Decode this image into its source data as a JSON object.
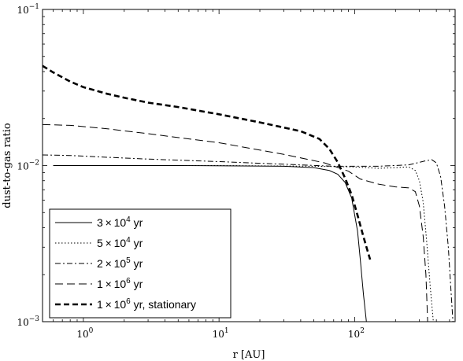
{
  "chart_data": {
    "type": "line",
    "xlabel": "r [AU]",
    "ylabel": "dust-to-gas ratio",
    "xscale": "log",
    "yscale": "log",
    "xlim": [
      0.5,
      550
    ],
    "ylim": [
      0.001,
      0.1
    ],
    "grid": false,
    "legend_position": "bottom-left",
    "x_ticks": [
      {
        "value": 1,
        "base": "10",
        "exp": "0"
      },
      {
        "value": 10,
        "base": "10",
        "exp": "1"
      },
      {
        "value": 100,
        "base": "10",
        "exp": "2"
      }
    ],
    "y_ticks": [
      {
        "value": 0.001,
        "base": "10",
        "exp": "−3"
      },
      {
        "value": 0.01,
        "base": "10",
        "exp": "−2"
      },
      {
        "value": 0.1,
        "base": "10",
        "exp": "−1"
      }
    ],
    "series": [
      {
        "id": "s1",
        "dash": "",
        "width": 1.0,
        "label": {
          "mantissa": "3",
          "times": "×",
          "base": "10",
          "exp": "4",
          "suffix": " yr"
        },
        "points": [
          [
            0.6,
            0.01
          ],
          [
            5,
            0.01
          ],
          [
            30,
            0.0099
          ],
          [
            50,
            0.0097
          ],
          [
            65,
            0.0093
          ],
          [
            75,
            0.0088
          ],
          [
            85,
            0.0078
          ],
          [
            95,
            0.0062
          ],
          [
            105,
            0.0038
          ],
          [
            110,
            0.0025
          ],
          [
            116,
            0.0015
          ],
          [
            122,
            0.001
          ]
        ]
      },
      {
        "id": "s2",
        "dash": "1.5,2.5",
        "width": 1.0,
        "label": {
          "mantissa": "5",
          "times": "×",
          "base": "10",
          "exp": "4",
          "suffix": " yr"
        },
        "points": [
          [
            0.6,
            0.01
          ],
          [
            10,
            0.01
          ],
          [
            50,
            0.0099
          ],
          [
            100,
            0.0098
          ],
          [
            150,
            0.0096
          ],
          [
            200,
            0.0097
          ],
          [
            250,
            0.0098
          ],
          [
            280,
            0.0093
          ],
          [
            300,
            0.008
          ],
          [
            320,
            0.0058
          ],
          [
            340,
            0.0032
          ],
          [
            360,
            0.0017
          ],
          [
            380,
            0.001
          ]
        ]
      },
      {
        "id": "s3",
        "dash": "7,3,2,3",
        "width": 1.0,
        "label": {
          "mantissa": "2",
          "times": "×",
          "base": "10",
          "exp": "5",
          "suffix": " yr"
        },
        "points": [
          [
            0.5,
            0.0117
          ],
          [
            0.8,
            0.0116
          ],
          [
            1.5,
            0.0113
          ],
          [
            3,
            0.011
          ],
          [
            10,
            0.0106
          ],
          [
            30,
            0.0102
          ],
          [
            70,
            0.0099
          ],
          [
            150,
            0.0099
          ],
          [
            250,
            0.0101
          ],
          [
            330,
            0.0107
          ],
          [
            370,
            0.0109
          ],
          [
            400,
            0.0104
          ],
          [
            430,
            0.0085
          ],
          [
            460,
            0.0055
          ],
          [
            490,
            0.003
          ],
          [
            510,
            0.0017
          ],
          [
            530,
            0.001
          ]
        ]
      },
      {
        "id": "s4",
        "dash": "10,5",
        "width": 1.0,
        "label": {
          "mantissa": "1",
          "times": "×",
          "base": "10",
          "exp": "6",
          "suffix": " yr"
        },
        "points": [
          [
            0.5,
            0.0183
          ],
          [
            0.8,
            0.0181
          ],
          [
            1.5,
            0.0172
          ],
          [
            3,
            0.016
          ],
          [
            10,
            0.014
          ],
          [
            30,
            0.0118
          ],
          [
            60,
            0.0104
          ],
          [
            90,
            0.0092
          ],
          [
            110,
            0.0082
          ],
          [
            150,
            0.0076
          ],
          [
            200,
            0.0073
          ],
          [
            250,
            0.0072
          ],
          [
            280,
            0.0068
          ],
          [
            300,
            0.0055
          ],
          [
            320,
            0.0035
          ],
          [
            335,
            0.002
          ],
          [
            345,
            0.001
          ]
        ]
      },
      {
        "id": "s5",
        "dash": "7,4",
        "width": 2.6,
        "label": {
          "mantissa": "1",
          "times": "×",
          "base": "10",
          "exp": "6",
          "suffix": " yr, stationary"
        },
        "points": [
          [
            0.5,
            0.0435
          ],
          [
            0.6,
            0.0395
          ],
          [
            0.8,
            0.0345
          ],
          [
            1,
            0.0318
          ],
          [
            1.5,
            0.0288
          ],
          [
            2,
            0.0272
          ],
          [
            3,
            0.0253
          ],
          [
            5,
            0.0237
          ],
          [
            10,
            0.0213
          ],
          [
            20,
            0.0189
          ],
          [
            40,
            0.0166
          ],
          [
            55,
            0.0148
          ],
          [
            65,
            0.0128
          ],
          [
            75,
            0.0105
          ],
          [
            85,
            0.0083
          ],
          [
            95,
            0.0065
          ],
          [
            105,
            0.0048
          ],
          [
            115,
            0.0036
          ],
          [
            125,
            0.0028
          ],
          [
            130,
            0.0025
          ]
        ]
      }
    ]
  }
}
